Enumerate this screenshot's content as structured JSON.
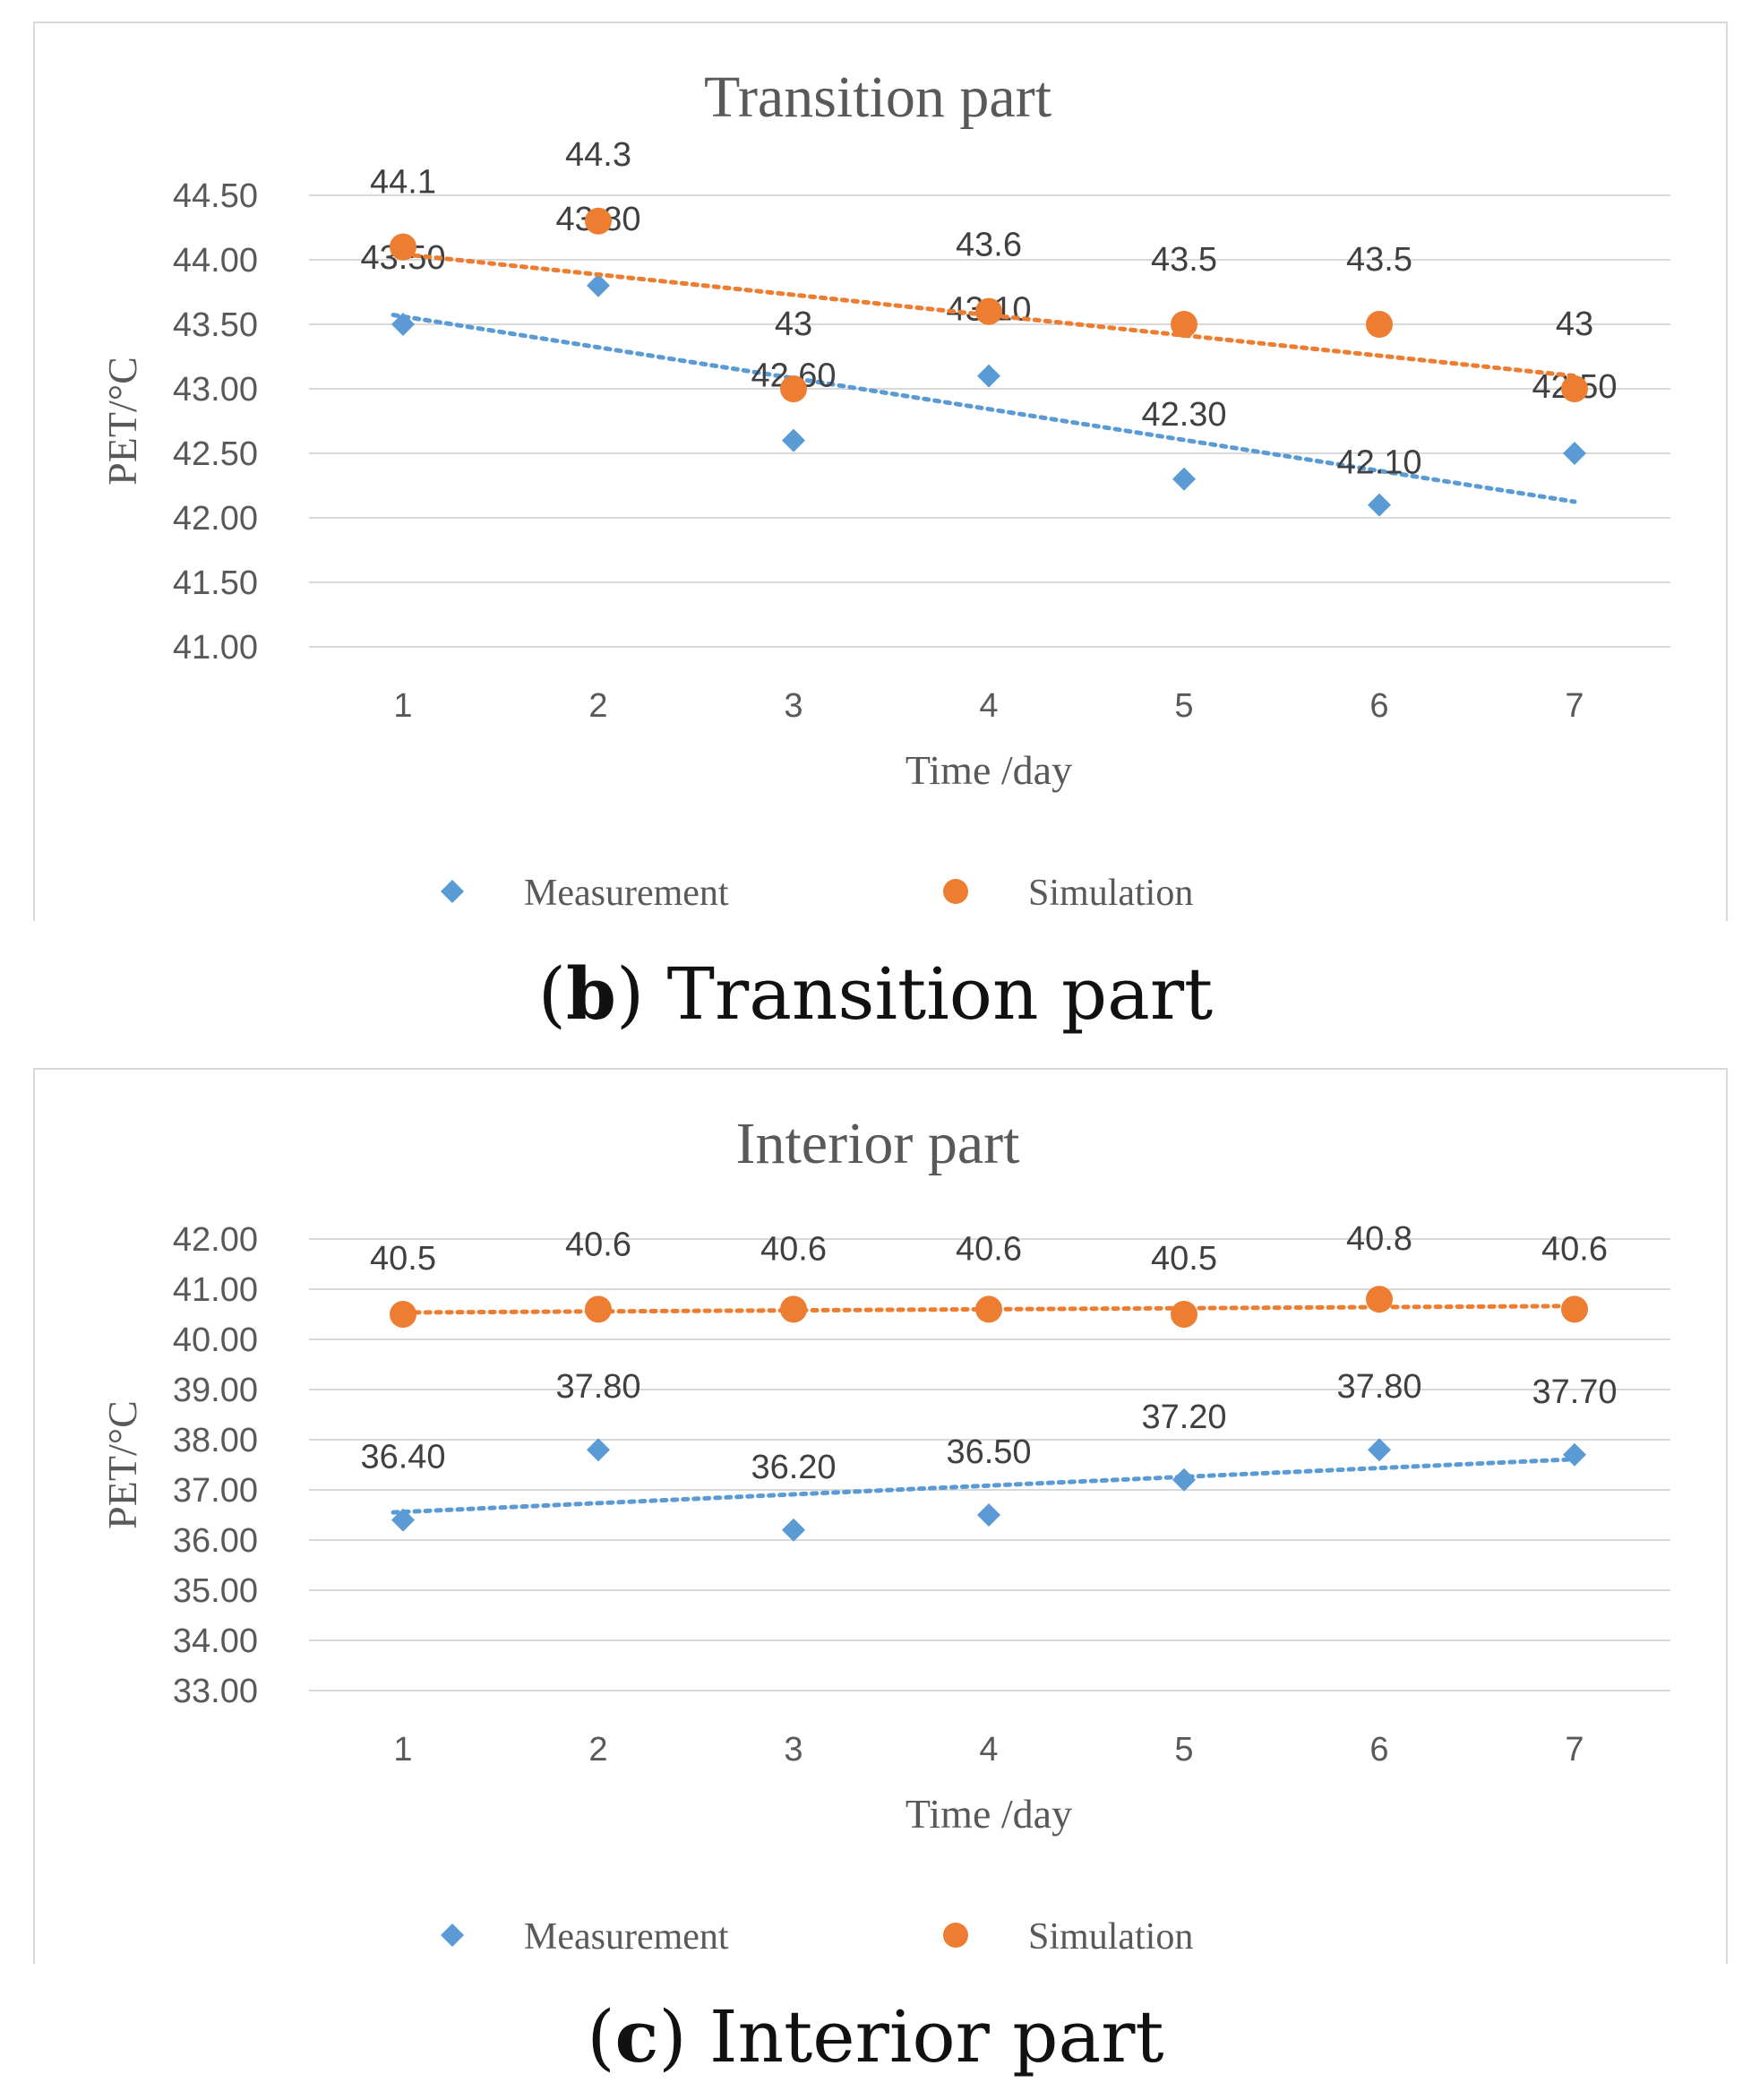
{
  "chart_data": [
    {
      "type": "scatter",
      "title": "Transition part",
      "xlabel": "Time /day",
      "ylabel": "PET/°C",
      "x": [
        1,
        2,
        3,
        4,
        5,
        6,
        7
      ],
      "ylim": [
        41.0,
        44.5
      ],
      "yticks": [
        "41.00",
        "41.50",
        "42.00",
        "42.50",
        "43.00",
        "43.50",
        "44.00",
        "44.50"
      ],
      "xticks": [
        "1",
        "2",
        "3",
        "4",
        "5",
        "6",
        "7"
      ],
      "series": [
        {
          "name": "Measurement",
          "marker": "diamond",
          "color": "#5b9bd5",
          "values": [
            43.5,
            43.8,
            42.6,
            43.1,
            42.3,
            42.1,
            42.5
          ],
          "labels": [
            "43.50",
            "43.80",
            "42.60",
            "43.10",
            "42.30",
            "42.10",
            "42.50"
          ],
          "trendline": "linear"
        },
        {
          "name": "Simulation",
          "marker": "circle",
          "color": "#ed7d31",
          "values": [
            44.1,
            44.3,
            43.0,
            43.6,
            43.5,
            43.5,
            43.0
          ],
          "labels": [
            "44.1",
            "44.3",
            "43",
            "43.6",
            "43.5",
            "43.5",
            "43"
          ],
          "trendline": "linear"
        }
      ],
      "legend": "bottom",
      "caption_letter": "b",
      "caption_text": "Transition part"
    },
    {
      "type": "scatter",
      "title": "Interior part",
      "xlabel": "Time /day",
      "ylabel": "PET/°C",
      "x": [
        1,
        2,
        3,
        4,
        5,
        6,
        7
      ],
      "ylim": [
        33.0,
        42.0
      ],
      "yticks": [
        "33.00",
        "34.00",
        "35.00",
        "36.00",
        "37.00",
        "38.00",
        "39.00",
        "40.00",
        "41.00",
        "42.00"
      ],
      "xticks": [
        "1",
        "2",
        "3",
        "4",
        "5",
        "6",
        "7"
      ],
      "series": [
        {
          "name": "Measurement",
          "marker": "diamond",
          "color": "#5b9bd5",
          "values": [
            36.4,
            37.8,
            36.2,
            36.5,
            37.2,
            37.8,
            37.7
          ],
          "labels": [
            "36.40",
            "37.80",
            "36.20",
            "36.50",
            "37.20",
            "37.80",
            "37.70"
          ],
          "trendline": "linear"
        },
        {
          "name": "Simulation",
          "marker": "circle",
          "color": "#ed7d31",
          "values": [
            40.5,
            40.6,
            40.6,
            40.6,
            40.5,
            40.8,
            40.6
          ],
          "labels": [
            "40.5",
            "40.6",
            "40.6",
            "40.6",
            "40.5",
            "40.8",
            "40.6"
          ],
          "trendline": "linear"
        }
      ],
      "legend": "bottom",
      "caption_letter": "c",
      "caption_text": "Interior part"
    }
  ]
}
